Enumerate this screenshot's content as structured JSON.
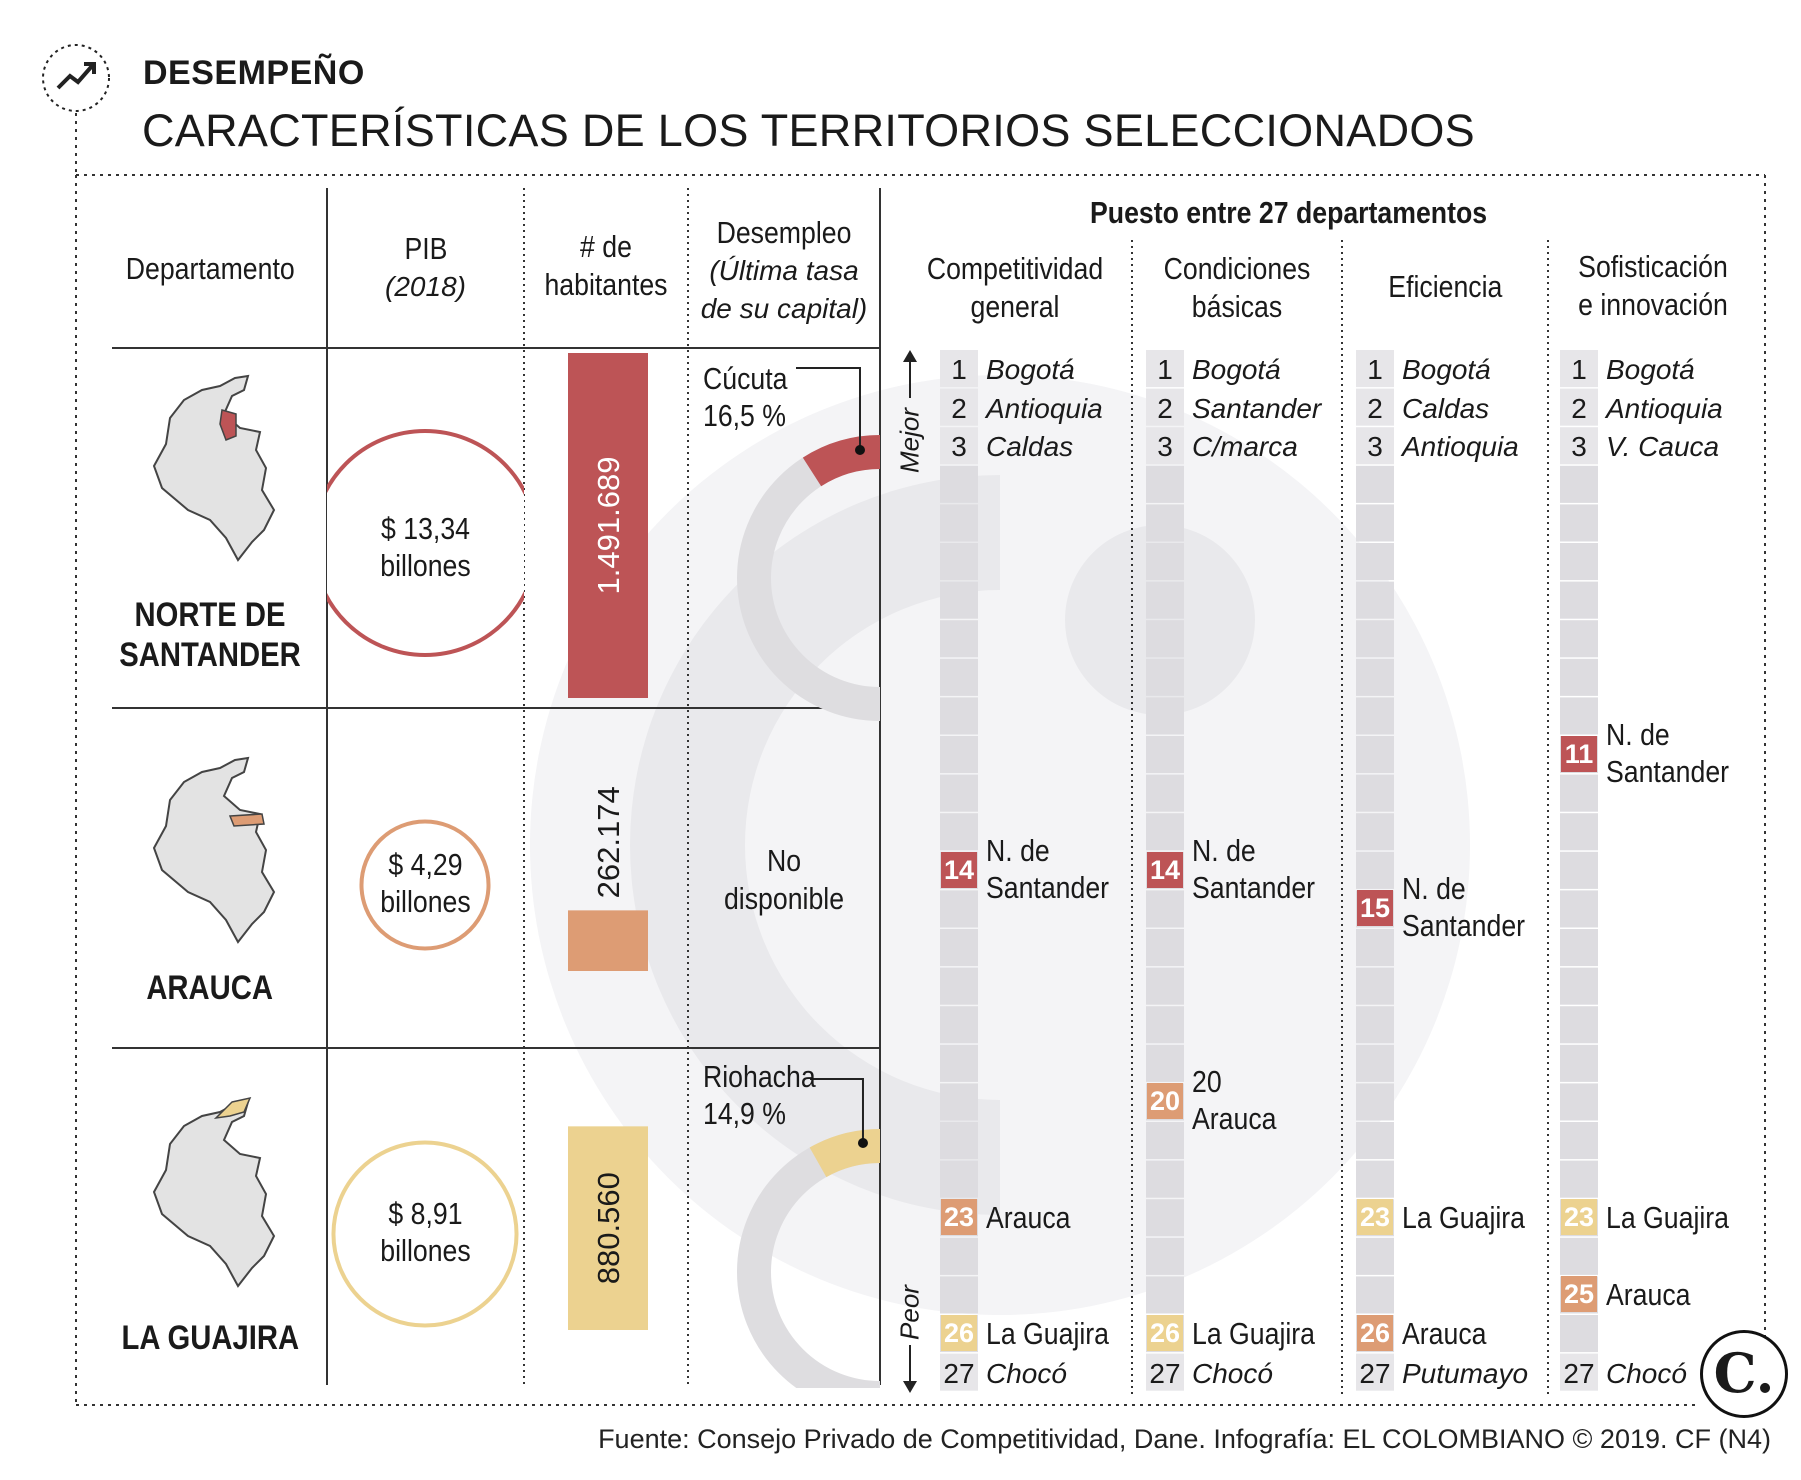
{
  "header": {
    "kicker": "DESEMPEÑO",
    "title": "CARACTERÍSTICAS DE LOS TERRITORIOS SELECCIONADOS",
    "icon": "trend-up-arrow-icon"
  },
  "columns": {
    "departamento": "Departamento",
    "pib": "PIB",
    "pib_sub": "(2018)",
    "habitantes_1": "# de",
    "habitantes_2": "habitantes",
    "desempleo": "Desempleo",
    "desempleo_sub1": "(Última tasa",
    "desempleo_sub2": "de su capital)"
  },
  "departments": [
    {
      "name_1": "NORTE DE",
      "name_2": "SANTANDER",
      "pib_1": "$ 13,34",
      "pib_2": "billones",
      "habitantes": "1.491.689",
      "capital": "Cúcuta",
      "rate": "16,5 %",
      "color": "#bd5456"
    },
    {
      "name_1": "ARAUCA",
      "name_2": "",
      "pib_1": "$ 4,29",
      "pib_2": "billones",
      "habitantes": "262.174",
      "nd_1": "No",
      "nd_2": "disponible",
      "color": "#dd9c74"
    },
    {
      "name_1": "LA GUAJIRA",
      "name_2": "",
      "pib_1": "$ 8,91",
      "pib_2": "billones",
      "habitantes": "880.560",
      "capital": "Riohacha",
      "rate": "14,9 %",
      "color": "#ecd290"
    }
  ],
  "ranking": {
    "title": "Puesto entre 27 departamentos",
    "mejor": "Mejor",
    "peor": "Peor",
    "total": 27,
    "pillars": [
      {
        "head_1": "Competitividad",
        "head_2": "general",
        "top": [
          {
            "rank": "1",
            "name": "Bogotá"
          },
          {
            "rank": "2",
            "name": "Antioquia"
          },
          {
            "rank": "3",
            "name": "Caldas"
          }
        ],
        "bottom": {
          "rank": "27",
          "name": "Chocó"
        },
        "callouts": [
          {
            "rank": 14,
            "label_1": "N. de",
            "label_2": "Santander",
            "color": "red"
          },
          {
            "rank": 23,
            "label_1": "Arauca",
            "label_2": "",
            "color": "orange"
          },
          {
            "rank": 26,
            "label_1": "La Guajira",
            "label_2": "",
            "color": "yellow"
          }
        ]
      },
      {
        "head_1": "Condiciones",
        "head_2": "básicas",
        "top": [
          {
            "rank": "1",
            "name": "Bogotá"
          },
          {
            "rank": "2",
            "name": "Santander"
          },
          {
            "rank": "3",
            "name": "C/marca"
          }
        ],
        "bottom": {
          "rank": "27",
          "name": "Chocó"
        },
        "callouts": [
          {
            "rank": 14,
            "label_1": "N. de",
            "label_2": "Santander",
            "color": "red"
          },
          {
            "rank": 20,
            "label_1": "20",
            "label_2": "Arauca",
            "color": "orange"
          },
          {
            "rank": 26,
            "label_1": "La Guajira",
            "label_2": "",
            "color": "yellow"
          }
        ]
      },
      {
        "head_1": "Eficiencia",
        "head_2": "",
        "top": [
          {
            "rank": "1",
            "name": "Bogotá"
          },
          {
            "rank": "2",
            "name": "Caldas"
          },
          {
            "rank": "3",
            "name": "Antioquia"
          }
        ],
        "bottom": {
          "rank": "27",
          "name": "Putumayo"
        },
        "callouts": [
          {
            "rank": 15,
            "label_1": "N. de",
            "label_2": "Santander",
            "color": "red"
          },
          {
            "rank": 23,
            "label_1": "La Guajira",
            "label_2": "",
            "color": "yellow"
          },
          {
            "rank": 26,
            "label_1": "Arauca",
            "label_2": "",
            "color": "orange"
          }
        ]
      },
      {
        "head_1": "Sofisticación",
        "head_2": "e innovación",
        "top": [
          {
            "rank": "1",
            "name": "Bogotá"
          },
          {
            "rank": "2",
            "name": "Antioquia"
          },
          {
            "rank": "3",
            "name": "V. Cauca"
          }
        ],
        "bottom": {
          "rank": "27",
          "name": "Chocó"
        },
        "callouts": [
          {
            "rank": 11,
            "label_1": "N. de",
            "label_2": "Santander",
            "color": "red"
          },
          {
            "rank": 23,
            "label_1": "La Guajira",
            "label_2": "",
            "color": "yellow"
          },
          {
            "rank": 25,
            "label_1": "Arauca",
            "label_2": "",
            "color": "orange"
          }
        ]
      }
    ]
  },
  "chart_data": [
    {
      "type": "bar",
      "title": "# de habitantes",
      "categories": [
        "NORTE DE SANTANDER",
        "ARAUCA",
        "LA GUAJIRA"
      ],
      "values": [
        1491689,
        262174,
        880560
      ]
    },
    {
      "type": "bubble",
      "title": "PIB (2018), billones",
      "categories": [
        "NORTE DE SANTANDER",
        "ARAUCA",
        "LA GUAJIRA"
      ],
      "values": [
        13.34,
        4.29,
        8.91
      ]
    },
    {
      "type": "gauge",
      "title": "Desempleo (Última tasa de su capital)",
      "categories": [
        "Cúcuta",
        "Riohacha"
      ],
      "values": [
        16.5,
        14.9
      ],
      "unit": "%"
    }
  ],
  "footer": {
    "source": "Fuente: Consejo Privado de Competitividad, Dane. Infografía: EL COLOMBIANO © 2019. CF (N4)",
    "logo": "C."
  },
  "colors": {
    "red": "#bd5456",
    "orange": "#dd9c74",
    "yellow": "#ecd290",
    "gray": "#e0dfe2"
  }
}
